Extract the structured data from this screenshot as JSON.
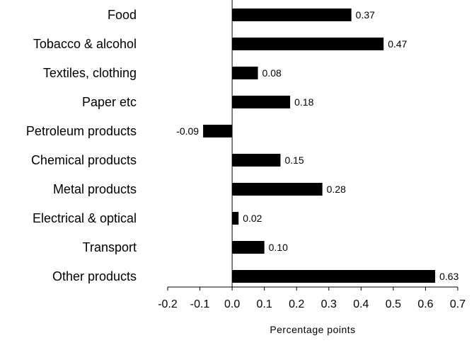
{
  "chart_data": {
    "type": "bar",
    "orientation": "horizontal",
    "categories": [
      "Food",
      "Tobacco & alcohol",
      "Textiles, clothing",
      "Paper etc",
      "Petroleum products",
      "Chemical products",
      "Metal products",
      "Electrical & optical",
      "Transport",
      "Other products"
    ],
    "values": [
      0.37,
      0.47,
      0.08,
      0.18,
      -0.09,
      0.15,
      0.28,
      0.02,
      0.1,
      0.63
    ],
    "value_labels": [
      "0.37",
      "0.47",
      "0.08",
      "0.18",
      "-0.09",
      "0.15",
      "0.28",
      "0.02",
      "0.10",
      "0.63"
    ],
    "title": "",
    "xlabel": "Percentage points",
    "ylabel": "",
    "xlim": [
      -0.2,
      0.7
    ],
    "xticks": [
      -0.2,
      -0.1,
      0.0,
      0.1,
      0.2,
      0.3,
      0.4,
      0.5,
      0.6,
      0.7
    ],
    "xtick_labels": [
      "-0.2",
      "-0.1",
      "0.0",
      "0.1",
      "0.2",
      "0.3",
      "0.4",
      "0.5",
      "0.6",
      "0.7"
    ],
    "grid": false,
    "legend": "none",
    "bar_color": "#000000"
  }
}
